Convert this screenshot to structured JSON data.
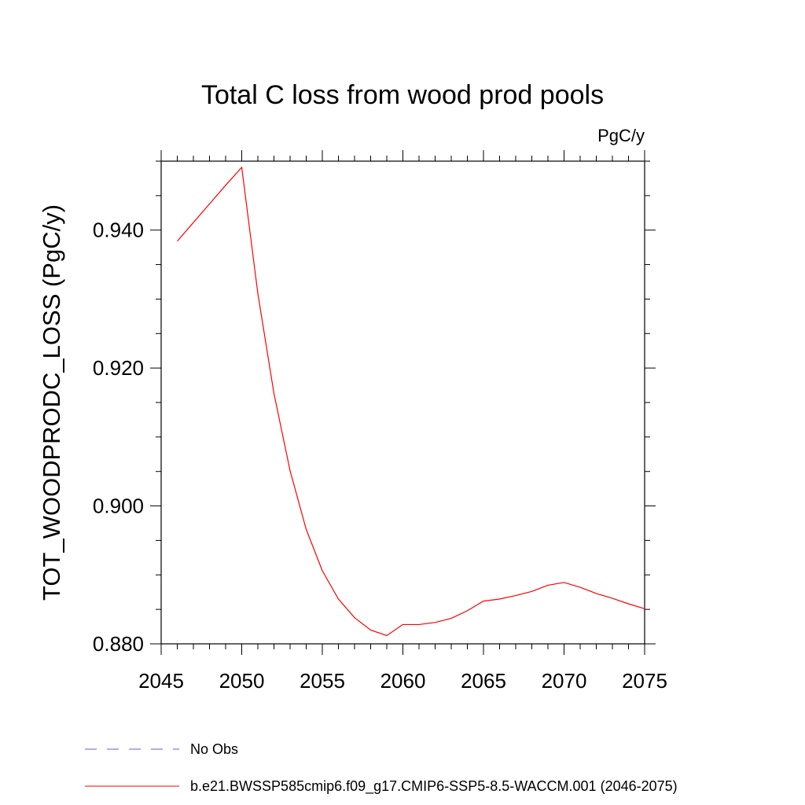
{
  "chart_data": {
    "type": "line",
    "title": "Total C loss from wood prod pools",
    "units_label": "PgC/y",
    "xlabel": "",
    "ylabel": "TOT_WOODPRODC_LOSS  (PgC/y)",
    "xlim": [
      2045,
      2075
    ],
    "ylim": [
      0.88,
      0.95
    ],
    "x_ticks": [
      2045,
      2050,
      2055,
      2060,
      2065,
      2070,
      2075
    ],
    "x_tick_labels": [
      "2045",
      "2050",
      "2055",
      "2060",
      "2065",
      "2070",
      "2075"
    ],
    "y_ticks": [
      0.88,
      0.9,
      0.92,
      0.94
    ],
    "y_tick_labels": [
      "0.880",
      "0.900",
      "0.920",
      "0.940"
    ],
    "y_minor_step": 0.005,
    "x_minor_step": 1,
    "grid": false,
    "legend_position": "bottom-left",
    "series": [
      {
        "name": "b.e21.BWSSP585cmip6.f09_g17.CMIP6-SSP5-8.5-WACCM.001 (2046-2075)",
        "color": "#ff0000",
        "style": "solid",
        "x": [
          2046,
          2047,
          2048,
          2049,
          2050,
          2051,
          2052,
          2053,
          2054,
          2055,
          2056,
          2057,
          2058,
          2059,
          2060,
          2061,
          2062,
          2063,
          2064,
          2065,
          2066,
          2067,
          2068,
          2069,
          2070,
          2071,
          2072,
          2073,
          2074,
          2075
        ],
        "values": [
          0.9384,
          0.9411,
          0.9438,
          0.9465,
          0.9491,
          0.9308,
          0.9163,
          0.9051,
          0.8966,
          0.8906,
          0.8865,
          0.8838,
          0.882,
          0.8812,
          0.8828,
          0.8828,
          0.8831,
          0.8837,
          0.8848,
          0.8862,
          0.8865,
          0.887,
          0.8876,
          0.8885,
          0.8889,
          0.8882,
          0.8873,
          0.8866,
          0.8858,
          0.8851
        ]
      },
      {
        "name": "No Obs",
        "color": "#6a5acd",
        "style": "dashed",
        "x": [],
        "values": []
      }
    ]
  }
}
